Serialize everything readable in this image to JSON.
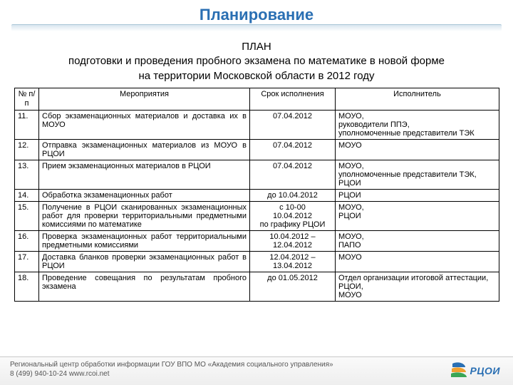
{
  "title": "Планирование",
  "heading": {
    "line1": "ПЛАН",
    "line2": "подготовки и проведения пробного экзамена по математике в новой форме",
    "line3": "на территории Московской области в 2012 году"
  },
  "columns": {
    "num": "№ п/п",
    "activity": "Мероприятия",
    "deadline": "Срок исполнения",
    "executor": "Исполнитель"
  },
  "rows": [
    {
      "num": "11.",
      "activity": "Сбор экзаменационных материалов и доставка их в МОУО",
      "deadline": "07.04.2012",
      "executor": "МОУО,\nруководители ППЭ,\nуполномоченные представители ТЭК"
    },
    {
      "num": "12.",
      "activity": "Отправка экзаменационных материалов из МОУО в РЦОИ",
      "deadline": "07.04.2012",
      "executor": "МОУО"
    },
    {
      "num": "13.",
      "activity": "Прием экзаменационных материалов в РЦОИ",
      "deadline": "07.04.2012",
      "executor": "МОУО,\nуполномоченные представители ТЭК,\nРЦОИ"
    },
    {
      "num": "14.",
      "activity": "Обработка  экзаменационных работ",
      "deadline": "до 10.04.2012",
      "executor": "РЦОИ"
    },
    {
      "num": "15.",
      "activity": "Получение в РЦОИ сканированных экзаменационных работ для проверки территориальными предметными комиссиями по математике",
      "deadline": "с 10-00\n10.04.2012\nпо графику РЦОИ",
      "executor": "МОУО,\nРЦОИ"
    },
    {
      "num": "16.",
      "activity": "Проверка экзаменационных работ территориальными предметными комиссиями",
      "deadline": "10.04.2012 – 12.04.2012",
      "executor": "МОУО,\nПАПО"
    },
    {
      "num": "17.",
      "activity": "Доставка бланков проверки экзаменационных работ в РЦОИ",
      "deadline": "12.04.2012 – 13.04.2012",
      "executor": "МОУО"
    },
    {
      "num": "18.",
      "activity": "Проведение совещания по результатам пробного экзамена",
      "deadline": "до 01.05.2012",
      "executor": "Отдел организации итоговой аттестации,\nРЦОИ,\nМОУО"
    }
  ],
  "footer": {
    "line1": "Региональный центр обработки информации ГОУ ВПО МО «Академия социального управления»",
    "line2": "8 (499) 940-10-24 www.rcoi.net",
    "logo_text": "РЦОИ",
    "logo_color_top": "#2a6fb3",
    "logo_color_mid": "#f0a030",
    "logo_color_bot": "#3aa655"
  },
  "colors": {
    "title": "#2a6fb3",
    "underline_border": "#a9c5d6",
    "text": "#000000"
  }
}
